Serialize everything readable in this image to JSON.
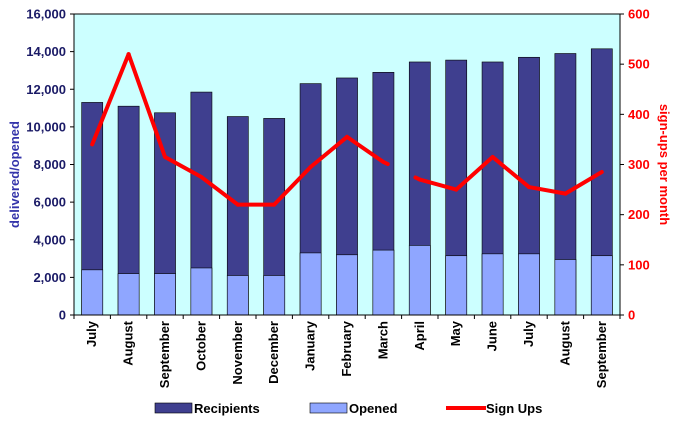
{
  "chart_data": {
    "type": "bar+line",
    "categories": [
      "July",
      "August",
      "September",
      "October",
      "November",
      "December",
      "January",
      "February",
      "March",
      "April",
      "May",
      "June",
      "July",
      "August",
      "September"
    ],
    "series": [
      {
        "name": "Recipients",
        "type": "bar",
        "axis": "left",
        "color": "#3f3f8f",
        "values": [
          11300,
          11100,
          10750,
          11850,
          10550,
          10450,
          12300,
          12600,
          12900,
          13450,
          13550,
          13450,
          13700,
          13900,
          14150
        ]
      },
      {
        "name": "Opened",
        "type": "bar",
        "axis": "left",
        "color": "#8fa6ff",
        "values": [
          2400,
          2200,
          2200,
          2500,
          2100,
          2100,
          3300,
          3200,
          3450,
          3700,
          3150,
          3250,
          3250,
          2950,
          3150
        ]
      },
      {
        "name": "Sign Ups",
        "type": "line",
        "axis": "right",
        "color": "#ff0000",
        "values": [
          340,
          520,
          315,
          275,
          220,
          220,
          295,
          355,
          305,
          270,
          250,
          315,
          255,
          242,
          285
        ],
        "gaps": [
          8
        ]
      }
    ],
    "ylabel": "delivered/opened",
    "y2label": "sign-ups per month",
    "ylim": [
      0,
      16000
    ],
    "y2lim": [
      0,
      600
    ],
    "yticks": [
      "0",
      "2,000",
      "4,000",
      "6,000",
      "8,000",
      "10,000",
      "12,000",
      "14,000",
      "16,000"
    ],
    "y2ticks": [
      "0",
      "100",
      "200",
      "300",
      "400",
      "500",
      "600"
    ],
    "legend_position": "bottom",
    "plot_background": "#ccffff"
  }
}
